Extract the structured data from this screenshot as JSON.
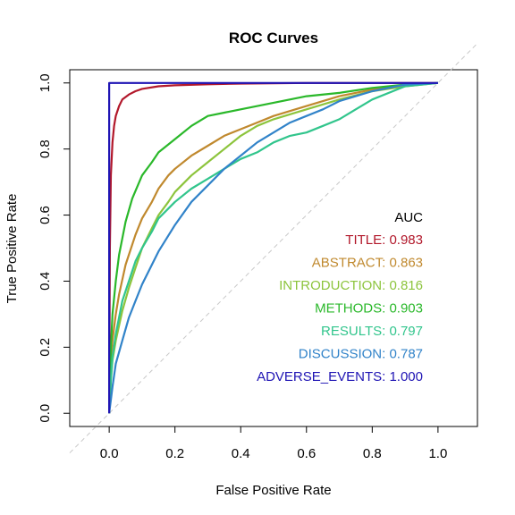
{
  "chart_data": {
    "type": "line",
    "title": "ROC Curves",
    "xlabel": "False Positive Rate",
    "ylabel": "True Positive Rate",
    "xlim": [
      -0.12,
      1.12
    ],
    "ylim": [
      -0.04,
      1.04
    ],
    "x_ticks": [
      "0.0",
      "0.2",
      "0.4",
      "0.6",
      "0.8",
      "1.0"
    ],
    "y_ticks": [
      "0.0",
      "0.2",
      "0.4",
      "0.6",
      "0.8",
      "1.0"
    ],
    "grid": false,
    "diagonal_reference": {
      "x": [
        -0.12,
        1.12
      ],
      "y": [
        -0.12,
        1.12
      ],
      "color": "#c8c8c8",
      "dashed": true
    },
    "legend": {
      "title": "AUC",
      "placement": "right"
    },
    "series": [
      {
        "name": "TITLE",
        "auc_label": "TITLE: 0.983",
        "color": "#b2182b",
        "x": [
          0,
          0.002,
          0.005,
          0.01,
          0.015,
          0.02,
          0.03,
          0.04,
          0.06,
          0.08,
          0.1,
          0.15,
          0.2,
          0.3,
          0.4,
          0.6,
          0.8,
          1.0
        ],
        "y": [
          0,
          0.5,
          0.72,
          0.82,
          0.87,
          0.9,
          0.93,
          0.95,
          0.965,
          0.975,
          0.982,
          0.99,
          0.993,
          0.996,
          0.998,
          1.0,
          1.0,
          1.0
        ]
      },
      {
        "name": "ABSTRACT",
        "auc_label": "ABSTRACT: 0.863",
        "color": "#c0892e",
        "x": [
          0,
          0.005,
          0.01,
          0.02,
          0.03,
          0.05,
          0.08,
          0.1,
          0.13,
          0.15,
          0.18,
          0.2,
          0.25,
          0.3,
          0.35,
          0.4,
          0.45,
          0.5,
          0.6,
          0.7,
          0.8,
          0.9,
          1.0
        ],
        "y": [
          0,
          0.15,
          0.22,
          0.3,
          0.36,
          0.45,
          0.54,
          0.59,
          0.64,
          0.68,
          0.72,
          0.74,
          0.78,
          0.81,
          0.84,
          0.86,
          0.88,
          0.9,
          0.93,
          0.96,
          0.98,
          0.995,
          1.0
        ]
      },
      {
        "name": "INTRODUCTION",
        "auc_label": "INTRODUCTION: 0.816",
        "color": "#8cc43c",
        "x": [
          0,
          0.005,
          0.01,
          0.02,
          0.04,
          0.06,
          0.08,
          0.1,
          0.13,
          0.15,
          0.18,
          0.2,
          0.25,
          0.3,
          0.35,
          0.4,
          0.45,
          0.5,
          0.6,
          0.7,
          0.8,
          0.9,
          1.0
        ],
        "y": [
          0,
          0.1,
          0.16,
          0.22,
          0.31,
          0.38,
          0.44,
          0.5,
          0.56,
          0.6,
          0.64,
          0.67,
          0.72,
          0.76,
          0.8,
          0.84,
          0.87,
          0.89,
          0.92,
          0.95,
          0.975,
          0.99,
          1.0
        ]
      },
      {
        "name": "METHODS",
        "auc_label": "METHODS: 0.903",
        "color": "#2ab82a",
        "x": [
          0,
          0.005,
          0.01,
          0.02,
          0.03,
          0.05,
          0.07,
          0.1,
          0.13,
          0.15,
          0.2,
          0.25,
          0.3,
          0.35,
          0.4,
          0.5,
          0.6,
          0.7,
          0.8,
          0.9,
          1.0
        ],
        "y": [
          0,
          0.2,
          0.3,
          0.4,
          0.48,
          0.58,
          0.65,
          0.72,
          0.76,
          0.79,
          0.83,
          0.87,
          0.9,
          0.91,
          0.92,
          0.94,
          0.96,
          0.97,
          0.985,
          0.995,
          1.0
        ]
      },
      {
        "name": "RESULTS",
        "auc_label": "RESULTS: 0.797",
        "color": "#31c58c",
        "x": [
          0,
          0.005,
          0.01,
          0.02,
          0.04,
          0.06,
          0.08,
          0.1,
          0.13,
          0.15,
          0.2,
          0.25,
          0.3,
          0.35,
          0.4,
          0.45,
          0.5,
          0.55,
          0.6,
          0.65,
          0.7,
          0.75,
          0.8,
          0.9,
          1.0
        ],
        "y": [
          0,
          0.1,
          0.17,
          0.24,
          0.34,
          0.4,
          0.46,
          0.5,
          0.55,
          0.59,
          0.64,
          0.68,
          0.71,
          0.74,
          0.77,
          0.79,
          0.82,
          0.84,
          0.85,
          0.87,
          0.89,
          0.92,
          0.95,
          0.99,
          1.0
        ]
      },
      {
        "name": "DISCUSSION",
        "auc_label": "DISCUSSION: 0.787",
        "color": "#3183c9",
        "x": [
          0,
          0.005,
          0.01,
          0.02,
          0.04,
          0.06,
          0.08,
          0.1,
          0.15,
          0.2,
          0.25,
          0.3,
          0.35,
          0.4,
          0.45,
          0.5,
          0.55,
          0.6,
          0.65,
          0.7,
          0.75,
          0.8,
          0.85,
          0.9,
          1.0
        ],
        "y": [
          0,
          0.04,
          0.08,
          0.15,
          0.22,
          0.29,
          0.34,
          0.39,
          0.49,
          0.57,
          0.64,
          0.69,
          0.74,
          0.78,
          0.82,
          0.85,
          0.88,
          0.9,
          0.92,
          0.945,
          0.96,
          0.975,
          0.985,
          0.995,
          1.0
        ]
      },
      {
        "name": "ADVERSE_EVENTS",
        "auc_label": "ADVERSE_EVENTS: 1.000",
        "color": "#1f14b4",
        "x": [
          0,
          0,
          1.0
        ],
        "y": [
          0,
          1.0,
          1.0
        ]
      }
    ]
  }
}
